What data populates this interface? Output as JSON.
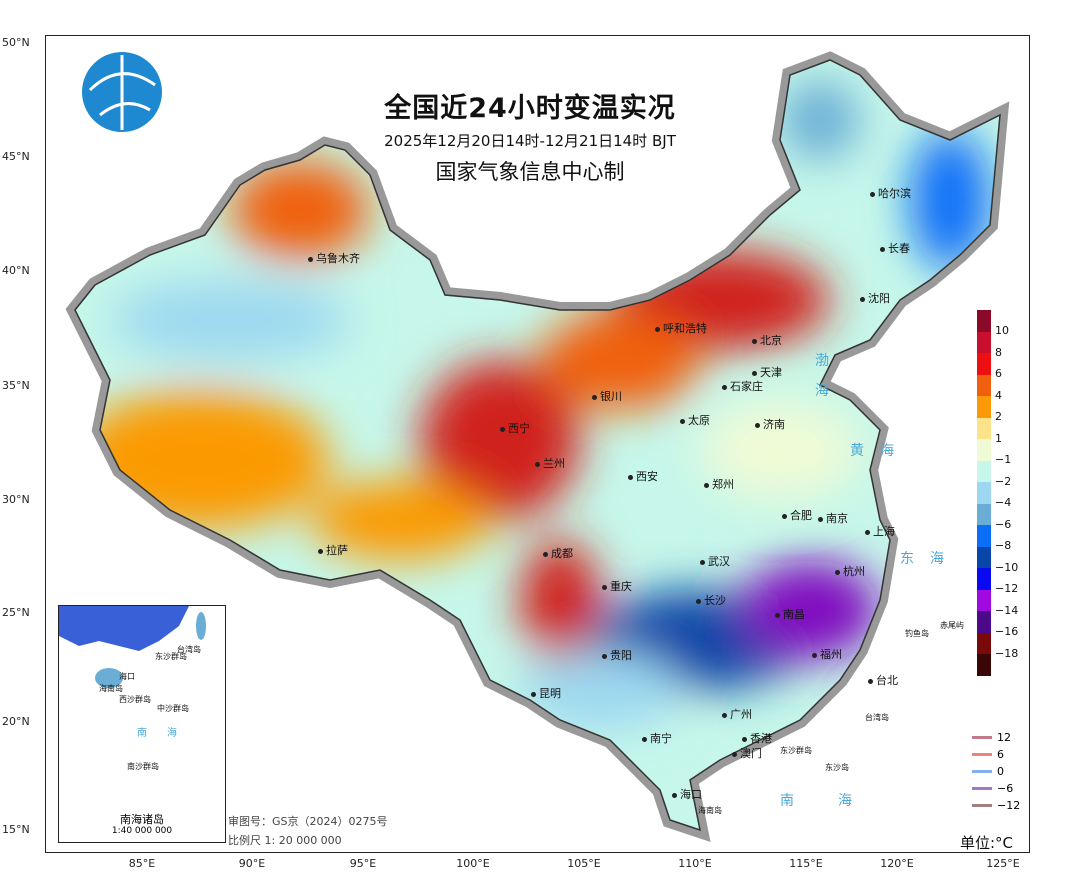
{
  "title": "全国近24小时变温实况",
  "subtitle": "2025年12月20日14时-12月21日14时 BJT",
  "producer": "国家气象信息中心制",
  "lat_labels": [
    "50°N",
    "45°N",
    "40°N",
    "35°N",
    "30°N",
    "25°N",
    "20°N",
    "15°N"
  ],
  "lon_labels": [
    "85°E",
    "90°E",
    "95°E",
    "100°E",
    "105°E",
    "110°E",
    "115°E",
    "120°E",
    "125°E"
  ],
  "cities": [
    "乌鲁木齐",
    "哈尔滨",
    "长春",
    "沈阳",
    "呼和浩特",
    "北京",
    "天津",
    "石家庄",
    "银川",
    "太原",
    "济南",
    "西宁",
    "兰州",
    "西安",
    "郑州",
    "合肥",
    "南京",
    "上海",
    "拉萨",
    "成都",
    "武汉",
    "杭州",
    "重庆",
    "长沙",
    "南昌",
    "福州",
    "贵阳",
    "昆明",
    "台北",
    "南宁",
    "广州",
    "香港",
    "澳门",
    "海口"
  ],
  "seas": [
    "渤",
    "海",
    "黄",
    "海",
    "东",
    "海",
    "南",
    "海"
  ],
  "islands": [
    "钓鱼岛",
    "赤尾屿",
    "台湾岛",
    "东沙群岛",
    "东沙岛",
    "海南岛"
  ],
  "legend": {
    "labels": [
      "10",
      "8",
      "6",
      "4",
      "2",
      "1",
      "−1",
      "−2",
      "−4",
      "−6",
      "−8",
      "−10",
      "−12",
      "−14",
      "−16",
      "−18"
    ],
    "colors": [
      "#8b0a2a",
      "#c8102e",
      "#ee1010",
      "#f06010",
      "#fb9a06",
      "#fde38a",
      "#f0fbd6",
      "#c6f7ea",
      "#9dd8f0",
      "#6aaed6",
      "#0a6ef8",
      "#0a46a8",
      "#0a0af0",
      "#a00ae0",
      "#4a0a8a",
      "#7a0a0a",
      "#3a0606"
    ]
  },
  "line_legend": [
    {
      "label": "12",
      "color": "#c27a8c"
    },
    {
      "label": "6",
      "color": "#f08080"
    },
    {
      "label": "0",
      "color": "#7fb0f0"
    },
    {
      "label": "−6",
      "color": "#a078c8"
    },
    {
      "label": "−12",
      "color": "#a08080"
    }
  ],
  "unit": "单位:°C",
  "review_number": "审图号：GS京（2024）0275号",
  "scale": "比例尺 1: 20 000 000",
  "inset": {
    "title": "南海诸岛",
    "scale": "1:40 000 000",
    "labels": [
      "海口",
      "海南岛",
      "台湾岛",
      "东沙群岛",
      "西沙群岛",
      "中沙群岛",
      "南",
      "海",
      "南沙群岛"
    ]
  }
}
